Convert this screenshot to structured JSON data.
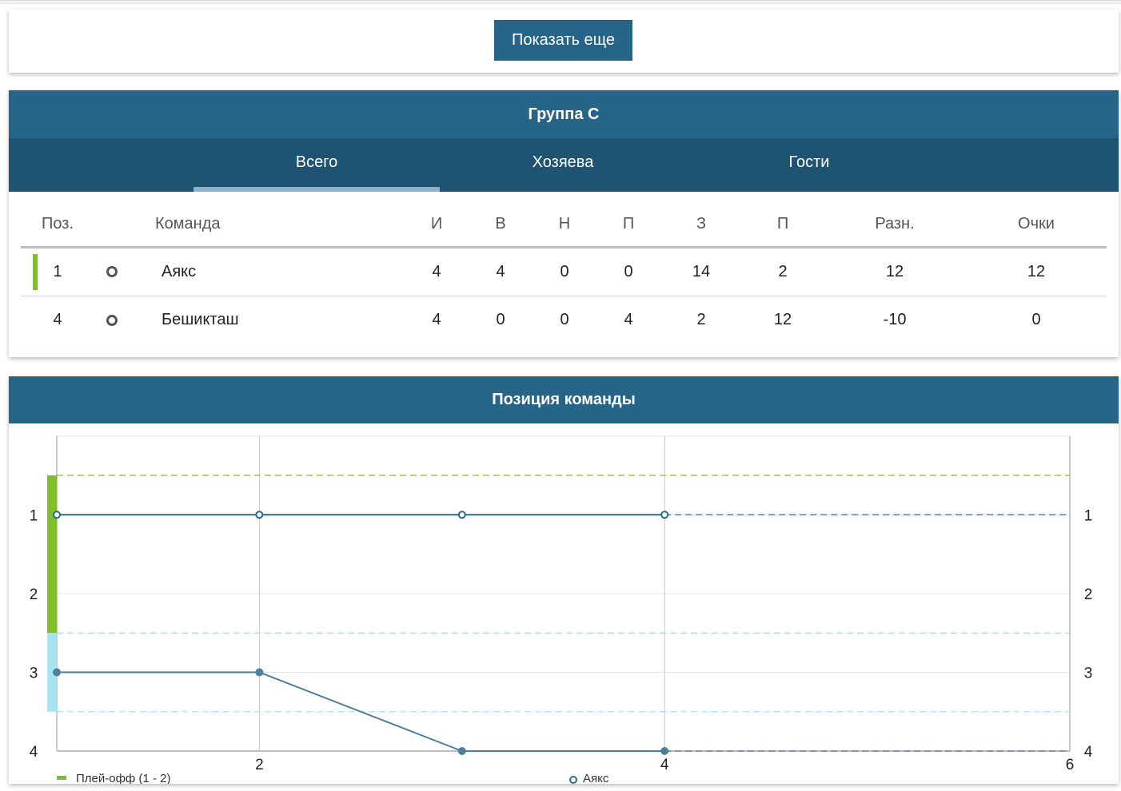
{
  "more": {
    "label": "Показать еще"
  },
  "group": {
    "title": "Группа C",
    "tabs": [
      "Всего",
      "Хозяева",
      "Гости"
    ],
    "active_tab": 0,
    "columns": [
      "Поз.",
      "",
      "Команда",
      "И",
      "В",
      "Н",
      "П",
      "З",
      "П",
      "Разн.",
      "Очки"
    ],
    "rows": [
      {
        "pos": "1",
        "team": "Аякс",
        "played": "4",
        "won": "4",
        "draw": "0",
        "lost": "0",
        "gf": "14",
        "ga": "2",
        "diff": "12",
        "points": "12",
        "zone": "playoff"
      },
      {
        "pos": "4",
        "team": "Бешикташ",
        "played": "4",
        "won": "0",
        "draw": "0",
        "lost": "4",
        "gf": "2",
        "ga": "12",
        "diff": "-10",
        "points": "0",
        "zone": ""
      }
    ]
  },
  "chart_title": "Позиция команды",
  "chart_data": {
    "type": "line",
    "xlim": [
      1,
      6
    ],
    "ylim": [
      4,
      0.5
    ],
    "x_ticks": [
      2,
      4,
      6
    ],
    "y_ticks": [
      1,
      2,
      3,
      4
    ],
    "zones": [
      {
        "name": "Плей-офф (1 - 2)",
        "from": 0.5,
        "to": 2.5,
        "color": "#7fbf2a"
      },
      {
        "name": "",
        "from": 2.5,
        "to": 3.5,
        "color": "#a6e3f3"
      }
    ],
    "series": [
      {
        "name": "Аякс",
        "x": [
          1,
          2,
          3,
          4
        ],
        "y": [
          1,
          1,
          1,
          1
        ],
        "projection": [
          4,
          6
        ],
        "color": "#2d6a88",
        "marker": "hollow"
      },
      {
        "name": "",
        "x": [
          1,
          2,
          3,
          4
        ],
        "y": [
          3,
          3,
          4,
          4
        ],
        "projection": [
          4,
          6
        ],
        "color": "#4e7f9c",
        "marker": "filled"
      }
    ],
    "legend": [
      "Плей-офф (1 - 2)",
      "Аякс"
    ],
    "legend_position": "bottom"
  },
  "colors": {
    "primary": "#276588",
    "tabs_bg": "#1e5372",
    "playoff": "#7fbf2a",
    "zone2": "#a6e3f3"
  }
}
